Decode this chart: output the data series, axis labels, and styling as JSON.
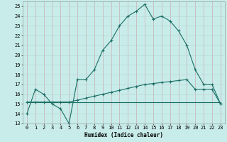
{
  "xlabel": "Humidex (Indice chaleur)",
  "xlim": [
    -0.5,
    23.5
  ],
  "ylim": [
    13,
    25.5
  ],
  "yticks": [
    13,
    14,
    15,
    16,
    17,
    18,
    19,
    20,
    21,
    22,
    23,
    24,
    25
  ],
  "xticks": [
    0,
    1,
    2,
    3,
    4,
    5,
    6,
    7,
    8,
    9,
    10,
    11,
    12,
    13,
    14,
    15,
    16,
    17,
    18,
    19,
    20,
    21,
    22,
    23
  ],
  "bg_color": "#c8ecea",
  "grid_major_color": "#b0d0cc",
  "grid_minor_color": "#d8eeec",
  "line_color": "#1a6e64",
  "line1_x": [
    0,
    1,
    2,
    3,
    4,
    5,
    6,
    7,
    8,
    9,
    10,
    11,
    12,
    13,
    14,
    15,
    16,
    17,
    18,
    19,
    20,
    21,
    22,
    23
  ],
  "line1_y": [
    14,
    16.5,
    16,
    15,
    14.5,
    13,
    17.5,
    17.5,
    18.5,
    20.5,
    21.5,
    23,
    24,
    24.5,
    25.2,
    23.7,
    24,
    23.5,
    22.5,
    21,
    18.5,
    17,
    17,
    15
  ],
  "line2_x": [
    0,
    1,
    2,
    3,
    4,
    5,
    6,
    7,
    8,
    9,
    10,
    11,
    12,
    13,
    14,
    15,
    16,
    17,
    18,
    19,
    20,
    21,
    22,
    23
  ],
  "line2_y": [
    15.2,
    15.2,
    15.2,
    15.2,
    15.2,
    15.2,
    15.4,
    15.6,
    15.8,
    16.0,
    16.2,
    16.4,
    16.6,
    16.8,
    17.0,
    17.1,
    17.2,
    17.3,
    17.4,
    17.5,
    16.5,
    16.5,
    16.5,
    15.0
  ],
  "line3_x": [
    0,
    23
  ],
  "line3_y": [
    15.2,
    15.2
  ]
}
